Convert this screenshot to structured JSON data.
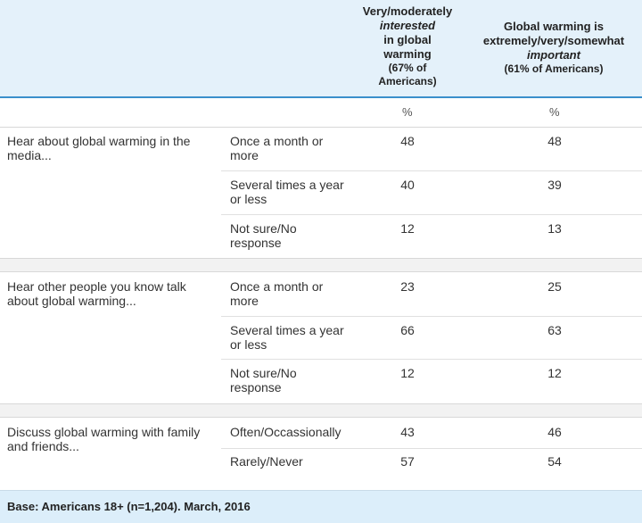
{
  "header": {
    "col1": {
      "line1": "Very/moderately",
      "line2": "interested",
      "line3": "in global",
      "line4": "warming",
      "pct1": "(67% of",
      "pct2": "Americans)"
    },
    "col2": {
      "line1": "Global warming is",
      "line2": "extremely/very/somewhat",
      "line3": "important",
      "pct": "(61% of Americans)"
    }
  },
  "percent_symbol": "%",
  "groups": [
    {
      "question_line1": "Hear about global warming in the",
      "question_line2": "media...",
      "rows": [
        {
          "opt1": "Once a month or",
          "opt2": "more",
          "v1": "48",
          "v2": "48"
        },
        {
          "opt1": "Several times a year",
          "opt2": "or less",
          "v1": "40",
          "v2": "39"
        },
        {
          "opt1": "Not sure/No",
          "opt2": "response",
          "v1": "12",
          "v2": "13"
        }
      ]
    },
    {
      "question_line1": "Hear other people you know talk",
      "question_line2": "about global warming...",
      "rows": [
        {
          "opt1": "Once a month or",
          "opt2": "more",
          "v1": "23",
          "v2": "25"
        },
        {
          "opt1": "Several times a year",
          "opt2": "or less",
          "v1": "66",
          "v2": "63"
        },
        {
          "opt1": "Not sure/No",
          "opt2": "response",
          "v1": "12",
          "v2": "12"
        }
      ]
    },
    {
      "question_line1": "Discuss global warming with family",
      "question_line2": "and friends...",
      "rows": [
        {
          "opt1": "Often/Occassionally",
          "opt2": "",
          "v1": "43",
          "v2": "46"
        },
        {
          "opt1": "Rarely/Never",
          "opt2": "",
          "v1": "57",
          "v2": "54"
        }
      ]
    }
  ],
  "footer": "Base: Americans 18+ (n=1,204). March, 2016"
}
